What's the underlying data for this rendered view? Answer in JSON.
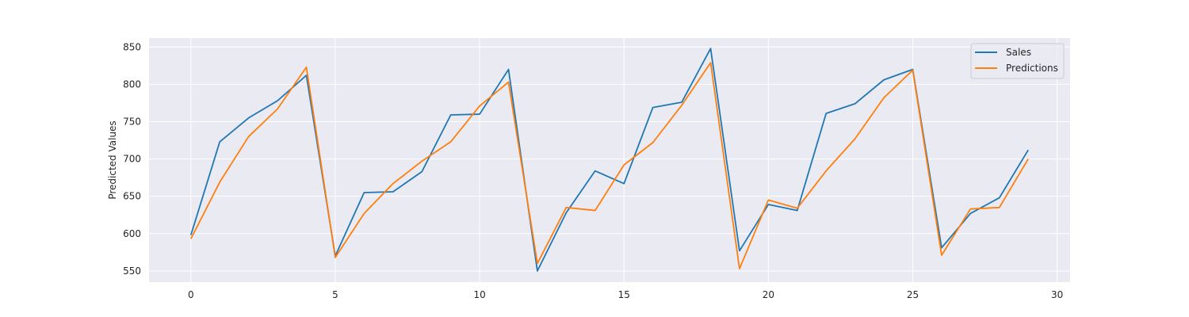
{
  "chart_data": {
    "type": "line",
    "title": "",
    "xlabel": "",
    "ylabel": "Predicted Values",
    "xlim": [
      -1.45,
      30.45
    ],
    "ylim": [
      535,
      862
    ],
    "xticks": [
      0,
      5,
      10,
      15,
      20,
      25,
      30
    ],
    "yticks": [
      550,
      600,
      650,
      700,
      750,
      800,
      850
    ],
    "grid": true,
    "legend_position": "top-right",
    "background_color": "#eaeaf2",
    "grid_color": "#ffffff",
    "x": [
      0,
      1,
      2,
      3,
      4,
      5,
      6,
      7,
      8,
      9,
      10,
      11,
      12,
      13,
      14,
      15,
      16,
      17,
      18,
      19,
      20,
      21,
      22,
      23,
      24,
      25,
      26,
      27,
      28,
      29
    ],
    "series": [
      {
        "name": "Sales",
        "color": "#1f77b4",
        "values": [
          598,
          723,
          755,
          778,
          812,
          570,
          655,
          656,
          683,
          759,
          760,
          820,
          550,
          628,
          684,
          667,
          769,
          776,
          848,
          577,
          639,
          631,
          761,
          774,
          806,
          820,
          581,
          627,
          648,
          712
        ]
      },
      {
        "name": "Predictions",
        "color": "#ff7f0e",
        "values": [
          593,
          669,
          730,
          767,
          823,
          568,
          627,
          667,
          697,
          723,
          771,
          803,
          560,
          635,
          631,
          692,
          722,
          772,
          829,
          553,
          645,
          634,
          684,
          727,
          782,
          819,
          571,
          633,
          635,
          700
        ]
      }
    ]
  }
}
